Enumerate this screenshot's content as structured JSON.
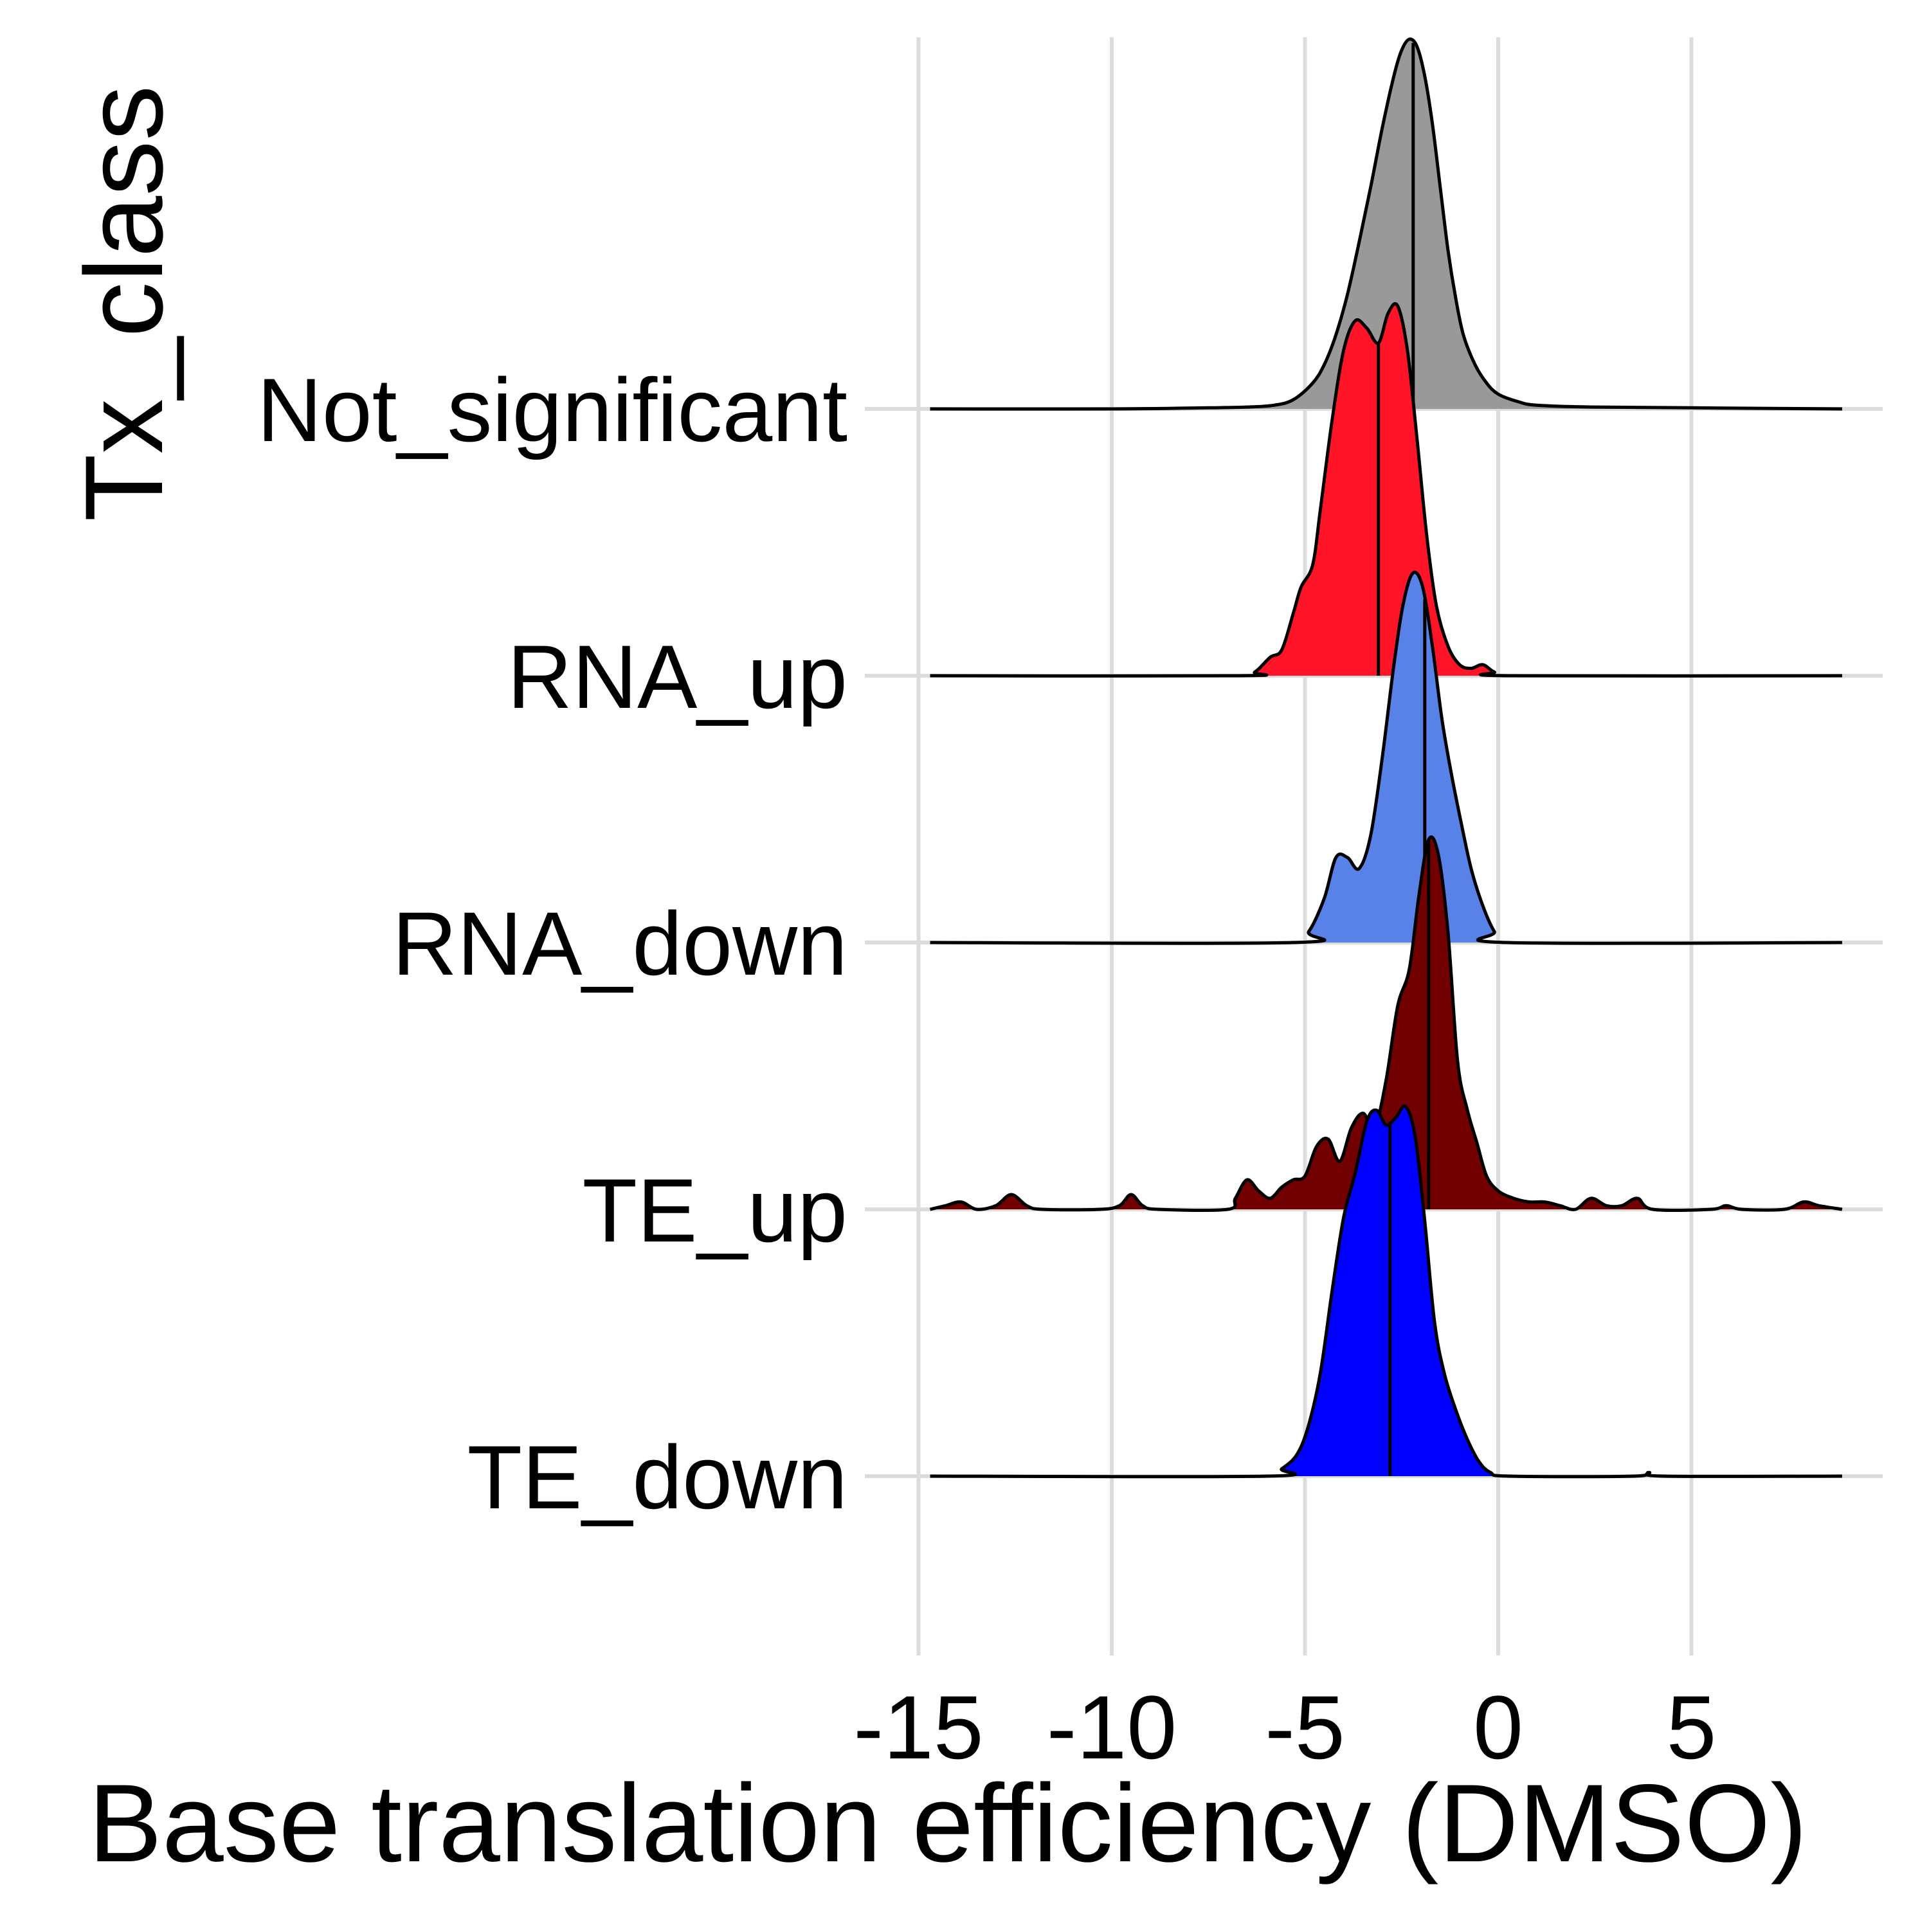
{
  "chart_data": {
    "type": "ridgeline",
    "xlabel": "Base translation efficiency (DMSO)",
    "ylabel": "Tx_class",
    "xlim": [
      -16.5,
      10
    ],
    "xticks": [
      -15,
      -10,
      -5,
      0,
      5
    ],
    "xtick_labels": [
      "-15",
      "-10",
      "-5",
      "0",
      "5"
    ],
    "grid": true,
    "legend": "none",
    "series": [
      {
        "name": "Not_significant",
        "color": "#999999",
        "median": -2.2,
        "density": [
          [
            -14.7,
            0
          ],
          [
            -10,
            0
          ],
          [
            -7.5,
            0.003
          ],
          [
            -6.5,
            0.005
          ],
          [
            -5.8,
            0.01
          ],
          [
            -5.3,
            0.025
          ],
          [
            -4.8,
            0.07
          ],
          [
            -4.5,
            0.12
          ],
          [
            -4.2,
            0.2
          ],
          [
            -3.9,
            0.31
          ],
          [
            -3.6,
            0.45
          ],
          [
            -3.3,
            0.6
          ],
          [
            -3.0,
            0.76
          ],
          [
            -2.7,
            0.9
          ],
          [
            -2.5,
            0.97
          ],
          [
            -2.3,
            1.0
          ],
          [
            -2.1,
            0.98
          ],
          [
            -1.9,
            0.9
          ],
          [
            -1.7,
            0.77
          ],
          [
            -1.5,
            0.6
          ],
          [
            -1.3,
            0.43
          ],
          [
            -1.1,
            0.3
          ],
          [
            -0.9,
            0.2
          ],
          [
            -0.6,
            0.12
          ],
          [
            -0.3,
            0.07
          ],
          [
            0,
            0.04
          ],
          [
            0.5,
            0.02
          ],
          [
            1.0,
            0.01
          ],
          [
            2.5,
            0.005
          ],
          [
            5.0,
            0.003
          ],
          [
            8.9,
            0
          ]
        ]
      },
      {
        "name": "RNA_up",
        "color": "#ff1428",
        "median": -3.1,
        "density": [
          [
            -14.7,
            0
          ],
          [
            -6.7,
            0
          ],
          [
            -6.3,
            0.01
          ],
          [
            -5.9,
            0.05
          ],
          [
            -5.6,
            0.07
          ],
          [
            -5.3,
            0.17
          ],
          [
            -5.1,
            0.24
          ],
          [
            -4.8,
            0.3
          ],
          [
            -4.6,
            0.45
          ],
          [
            -4.3,
            0.69
          ],
          [
            -4.0,
            0.88
          ],
          [
            -3.7,
            0.96
          ],
          [
            -3.4,
            0.94
          ],
          [
            -3.1,
            0.9
          ],
          [
            -2.85,
            0.98
          ],
          [
            -2.6,
            1.0
          ],
          [
            -2.35,
            0.88
          ],
          [
            -2.1,
            0.64
          ],
          [
            -1.85,
            0.38
          ],
          [
            -1.6,
            0.19
          ],
          [
            -1.3,
            0.08
          ],
          [
            -1.0,
            0.03
          ],
          [
            -0.7,
            0.02
          ],
          [
            -0.4,
            0.03
          ],
          [
            -0.1,
            0.01
          ],
          [
            0.3,
            0
          ],
          [
            8.9,
            0
          ]
        ]
      },
      {
        "name": "RNA_down",
        "color": "#5882e8",
        "median": -1.9,
        "density": [
          [
            -14.7,
            0
          ],
          [
            -5.3,
            0
          ],
          [
            -4.9,
            0.03
          ],
          [
            -4.5,
            0.12
          ],
          [
            -4.2,
            0.23
          ],
          [
            -3.9,
            0.23
          ],
          [
            -3.6,
            0.2
          ],
          [
            -3.3,
            0.29
          ],
          [
            -3.0,
            0.5
          ],
          [
            -2.7,
            0.75
          ],
          [
            -2.45,
            0.92
          ],
          [
            -2.2,
            1.0
          ],
          [
            -1.95,
            0.96
          ],
          [
            -1.7,
            0.8
          ],
          [
            -1.45,
            0.6
          ],
          [
            -1.2,
            0.45
          ],
          [
            -0.95,
            0.32
          ],
          [
            -0.7,
            0.2
          ],
          [
            -0.4,
            0.1
          ],
          [
            -0.1,
            0.03
          ],
          [
            0.2,
            0
          ],
          [
            8.9,
            0
          ]
        ]
      },
      {
        "name": "TE_up",
        "color": "#730000",
        "median": -1.8,
        "density": [
          [
            -14.7,
            0
          ],
          [
            -14.3,
            0.01
          ],
          [
            -13.9,
            0.02
          ],
          [
            -13.5,
            0
          ],
          [
            -13.0,
            0.01
          ],
          [
            -12.6,
            0.04
          ],
          [
            -12.2,
            0.01
          ],
          [
            -11.8,
            0
          ],
          [
            -10.3,
            0
          ],
          [
            -9.8,
            0.01
          ],
          [
            -9.5,
            0.04
          ],
          [
            -9.2,
            0.01
          ],
          [
            -8.8,
            0
          ],
          [
            -7.0,
            0
          ],
          [
            -6.8,
            0.03
          ],
          [
            -6.5,
            0.08
          ],
          [
            -6.2,
            0.05
          ],
          [
            -5.9,
            0.03
          ],
          [
            -5.6,
            0.06
          ],
          [
            -5.3,
            0.08
          ],
          [
            -5.0,
            0.09
          ],
          [
            -4.7,
            0.17
          ],
          [
            -4.4,
            0.19
          ],
          [
            -4.1,
            0.13
          ],
          [
            -3.8,
            0.22
          ],
          [
            -3.5,
            0.26
          ],
          [
            -3.2,
            0.22
          ],
          [
            -2.9,
            0.35
          ],
          [
            -2.6,
            0.55
          ],
          [
            -2.3,
            0.65
          ],
          [
            -2.05,
            0.85
          ],
          [
            -1.8,
            1.0
          ],
          [
            -1.55,
            0.96
          ],
          [
            -1.3,
            0.75
          ],
          [
            -1.05,
            0.4
          ],
          [
            -0.8,
            0.27
          ],
          [
            -0.55,
            0.18
          ],
          [
            -0.3,
            0.09
          ],
          [
            0,
            0.05
          ],
          [
            0.4,
            0.03
          ],
          [
            0.8,
            0.02
          ],
          [
            1.2,
            0.02
          ],
          [
            1.6,
            0.01
          ],
          [
            2.0,
            0
          ],
          [
            2.4,
            0.03
          ],
          [
            2.8,
            0.01
          ],
          [
            3.2,
            0.01
          ],
          [
            3.6,
            0.03
          ],
          [
            4.0,
            0
          ],
          [
            5.5,
            0
          ],
          [
            5.9,
            0.01
          ],
          [
            6.3,
            0
          ],
          [
            7.4,
            0
          ],
          [
            7.9,
            0.02
          ],
          [
            8.3,
            0.01
          ],
          [
            8.9,
            0
          ]
        ]
      },
      {
        "name": "TE_down",
        "color": "#0000ff",
        "median": -2.8,
        "density": [
          [
            -14.7,
            0
          ],
          [
            -6.0,
            0
          ],
          [
            -5.6,
            0.02
          ],
          [
            -5.2,
            0.06
          ],
          [
            -4.9,
            0.14
          ],
          [
            -4.6,
            0.28
          ],
          [
            -4.3,
            0.5
          ],
          [
            -4.0,
            0.7
          ],
          [
            -3.7,
            0.82
          ],
          [
            -3.4,
            0.96
          ],
          [
            -3.15,
            0.99
          ],
          [
            -2.9,
            0.95
          ],
          [
            -2.65,
            0.97
          ],
          [
            -2.4,
            1.0
          ],
          [
            -2.15,
            0.92
          ],
          [
            -1.9,
            0.69
          ],
          [
            -1.65,
            0.42
          ],
          [
            -1.4,
            0.28
          ],
          [
            -1.1,
            0.18
          ],
          [
            -0.8,
            0.1
          ],
          [
            -0.5,
            0.04
          ],
          [
            -0.2,
            0.01
          ],
          [
            0.3,
            0
          ],
          [
            3.5,
            0
          ],
          [
            3.9,
            0.01
          ],
          [
            4.3,
            0
          ],
          [
            8.9,
            0
          ]
        ]
      }
    ]
  }
}
